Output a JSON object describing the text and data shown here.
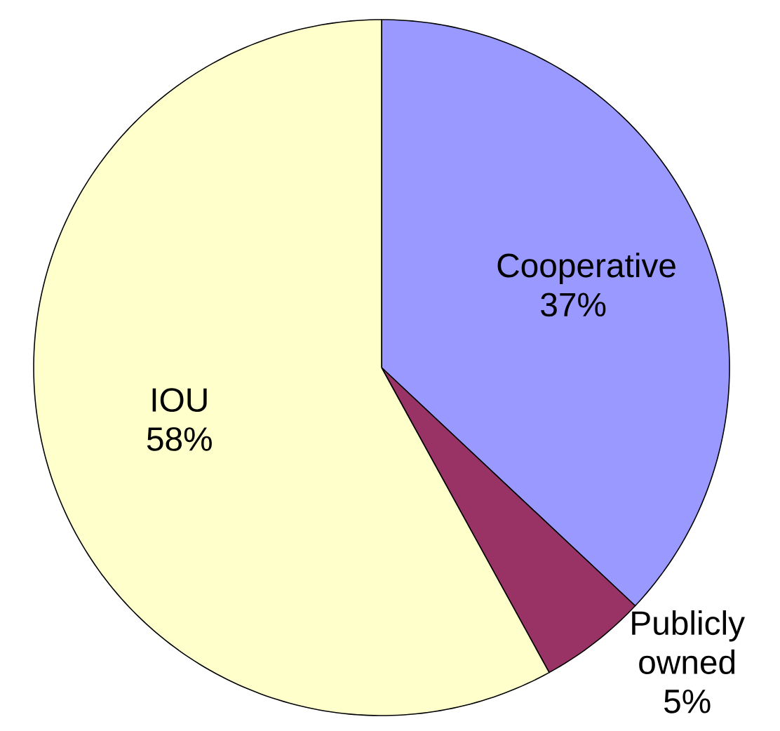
{
  "chart_data": {
    "type": "pie",
    "categories": [
      "Cooperative",
      "Publicly owned",
      "IOU"
    ],
    "values": [
      37,
      5,
      58
    ],
    "colors": [
      "#9999ff",
      "#993366",
      "#ffffcc"
    ],
    "value_labels": [
      "37%",
      "5%",
      "58%"
    ]
  }
}
